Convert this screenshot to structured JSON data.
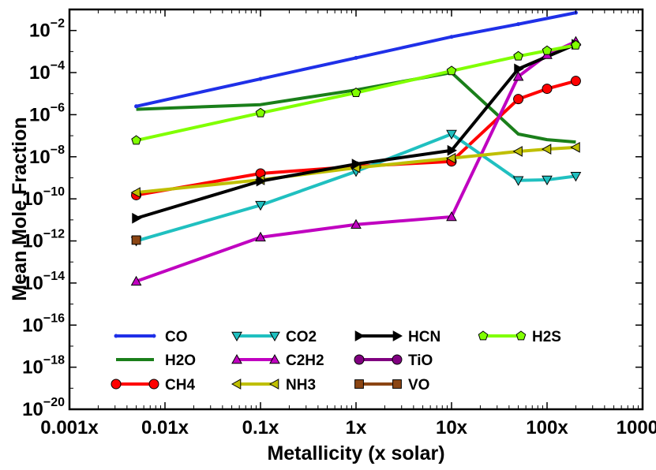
{
  "chart_data": {
    "type": "line",
    "title": "",
    "xlabel": "Metallicity (x solar)",
    "ylabel": "Mean Mole Fraction",
    "xscale": "log",
    "yscale": "log",
    "xlim": [
      0.001,
      1000
    ],
    "ylim": [
      1e-20,
      0.1
    ],
    "x_ticks": [
      {
        "value": 0.001,
        "label": "0.001x"
      },
      {
        "value": 0.01,
        "label": "0.01x"
      },
      {
        "value": 0.1,
        "label": "0.1x"
      },
      {
        "value": 1,
        "label": "1x"
      },
      {
        "value": 10,
        "label": "10x"
      },
      {
        "value": 100,
        "label": "100x"
      },
      {
        "value": 1000,
        "label": "1000x"
      }
    ],
    "y_ticks": [
      {
        "value": 1e-20,
        "base": "10",
        "exp": "−20"
      },
      {
        "value": 1e-18,
        "base": "10",
        "exp": "−18"
      },
      {
        "value": 1e-16,
        "base": "10",
        "exp": "−16"
      },
      {
        "value": 1e-14,
        "base": "10",
        "exp": "−14"
      },
      {
        "value": 1e-12,
        "base": "10",
        "exp": "−12"
      },
      {
        "value": 1e-10,
        "base": "10",
        "exp": "−10"
      },
      {
        "value": 1e-08,
        "base": "10",
        "exp": "−8"
      },
      {
        "value": 1e-06,
        "base": "10",
        "exp": "−6"
      },
      {
        "value": 0.0001,
        "base": "10",
        "exp": "−4"
      },
      {
        "value": 0.01,
        "base": "10",
        "exp": "−2"
      }
    ],
    "series": [
      {
        "name": "CO",
        "color": "#1f30e8",
        "marker": "point",
        "x": [
          0.005,
          0.1,
          1,
          10,
          50,
          200
        ],
        "y": [
          2.5e-06,
          5e-05,
          0.0005,
          0.005,
          0.02,
          0.07
        ]
      },
      {
        "name": "H2O",
        "color": "#1a7f1a",
        "marker": "none",
        "x": [
          0.005,
          0.1,
          1,
          10,
          50,
          100,
          200
        ],
        "y": [
          1.8e-06,
          3e-06,
          1.5e-05,
          0.0001,
          1.2e-07,
          6.5e-08,
          5e-08
        ]
      },
      {
        "name": "CH4",
        "color": "#ff0000",
        "marker": "circle",
        "x": [
          0.005,
          0.1,
          1,
          10,
          50,
          100,
          200
        ],
        "y": [
          1.5e-10,
          1.6e-09,
          3.5e-09,
          6e-09,
          5.5e-06,
          1.7e-05,
          4e-05
        ]
      },
      {
        "name": "CO2",
        "color": "#20c0c0",
        "marker": "triangle-down",
        "x": [
          0.005,
          0.1,
          1,
          10,
          50,
          100,
          200
        ],
        "y": [
          1e-12,
          5e-11,
          2e-09,
          1.2e-07,
          7.5e-10,
          8e-10,
          1.2e-09
        ]
      },
      {
        "name": "C2H2",
        "color": "#c000c0",
        "marker": "triangle-up",
        "x": [
          0.005,
          0.1,
          1,
          10,
          50,
          100,
          200
        ],
        "y": [
          1.2e-14,
          1.5e-12,
          6e-12,
          1.4e-11,
          6.5e-05,
          0.0007,
          0.003
        ]
      },
      {
        "name": "NH3",
        "color": "#bfbf00",
        "marker": "triangle-left",
        "x": [
          0.005,
          0.1,
          1,
          10,
          50,
          100,
          200
        ],
        "y": [
          2e-10,
          8e-10,
          3e-09,
          8.5e-09,
          1.8e-08,
          2.3e-08,
          2.8e-08
        ]
      },
      {
        "name": "HCN",
        "color": "#000000",
        "marker": "triangle-right",
        "x": [
          0.005,
          0.1,
          1,
          10,
          50,
          200
        ],
        "y": [
          1.2e-11,
          7e-10,
          4.5e-09,
          2e-08,
          0.00015,
          0.0022
        ]
      },
      {
        "name": "TiO",
        "color": "#800080",
        "marker": "circle",
        "x": [],
        "y": []
      },
      {
        "name": "VO",
        "color": "#8b4513",
        "marker": "square",
        "x": [
          0.005
        ],
        "y": [
          1.1e-12
        ]
      },
      {
        "name": "H2S",
        "color": "#80ff00",
        "marker": "pentagon",
        "x": [
          0.005,
          0.1,
          1,
          10,
          50,
          100,
          200
        ],
        "y": [
          6e-08,
          1.2e-06,
          1.1e-05,
          0.00012,
          0.0006,
          0.0011,
          0.002
        ]
      }
    ],
    "legend": {
      "position": "lower-center",
      "columns": 4,
      "order": [
        "CO",
        "H2O",
        "CH4",
        "CO2",
        "C2H2",
        "NH3",
        "HCN",
        "TiO",
        "VO",
        "H2S"
      ]
    }
  }
}
